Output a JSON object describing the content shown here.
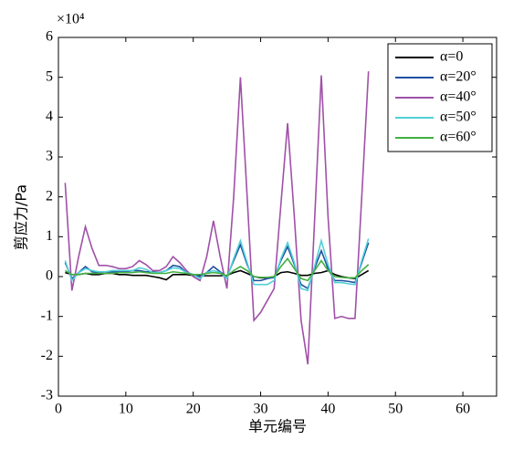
{
  "chart_data": {
    "type": "line",
    "xlabel": "单元编号",
    "ylabel": "剪应力/Pa",
    "y_multiplier": "×10⁴",
    "xlim": [
      0,
      65
    ],
    "xticks": [
      0,
      10,
      20,
      30,
      40,
      50,
      60
    ],
    "ylim": [
      -3,
      6
    ],
    "yticks": [
      -3,
      -2,
      -1,
      0,
      1,
      2,
      3,
      4,
      5,
      6
    ],
    "legend": "upper right",
    "x": [
      1,
      2,
      3,
      4,
      5,
      6,
      7,
      8,
      9,
      10,
      11,
      12,
      13,
      14,
      15,
      16,
      17,
      18,
      19,
      20,
      21,
      22,
      23,
      24,
      25,
      26,
      27,
      28,
      29,
      30,
      31,
      32,
      33,
      34,
      35,
      36,
      37,
      38,
      39,
      40,
      41,
      42,
      43,
      44,
      45,
      46
    ],
    "series": [
      {
        "name": "α=0",
        "color": "#000000",
        "values": [
          0.1,
          0.05,
          0.05,
          0.08,
          0.05,
          0.05,
          0.08,
          0.08,
          0.05,
          0.05,
          0.03,
          0.03,
          0.03,
          0,
          -0.03,
          -0.08,
          0.05,
          0.05,
          0.05,
          0.03,
          0.02,
          0.02,
          0.02,
          0.02,
          0.03,
          0.1,
          0.15,
          0.08,
          0,
          -0.03,
          -0.03,
          0,
          0.1,
          0.12,
          0.08,
          0.03,
          0.03,
          0.08,
          0.1,
          0.15,
          0.05,
          0,
          -0.03,
          -0.05,
          0.05,
          0.15
        ]
      },
      {
        "name": "α=20°",
        "color": "#1f4fa0",
        "values": [
          0.35,
          -0.05,
          0.1,
          0.25,
          0.12,
          0.1,
          0.12,
          0.12,
          0.12,
          0.12,
          0.15,
          0.15,
          0.12,
          0.12,
          0.1,
          0.15,
          0.28,
          0.25,
          0.1,
          0.05,
          0,
          0.1,
          0.25,
          0.12,
          0,
          0.4,
          0.8,
          0.3,
          -0.1,
          -0.1,
          -0.05,
          -0.02,
          0.4,
          0.75,
          0.3,
          -0.2,
          -0.3,
          0.2,
          0.65,
          0.2,
          -0.1,
          -0.1,
          -0.12,
          -0.15,
          0.35,
          0.85
        ]
      },
      {
        "name": "α=40°",
        "color": "#a050a8",
        "values": [
          2.35,
          -0.35,
          0.5,
          1.25,
          0.7,
          0.28,
          0.28,
          0.25,
          0.2,
          0.2,
          0.25,
          0.4,
          0.3,
          0.15,
          0.15,
          0.25,
          0.5,
          0.35,
          0.15,
          0,
          -0.1,
          0.5,
          1.4,
          0.5,
          -0.3,
          2.0,
          5.0,
          2.0,
          -1.1,
          -0.9,
          -0.6,
          -0.3,
          1.8,
          3.85,
          1.5,
          -1.1,
          -2.2,
          1.4,
          5.05,
          1.5,
          -1.05,
          -1.0,
          -1.05,
          -1.05,
          2.0,
          5.15
        ]
      },
      {
        "name": "α=50°",
        "color": "#50d0d8",
        "values": [
          0.4,
          -0.1,
          0.1,
          0.2,
          0.15,
          0.12,
          0.12,
          0.15,
          0.15,
          0.15,
          0.15,
          0.22,
          0.18,
          0.1,
          0.1,
          0.15,
          0.22,
          0.2,
          0.1,
          0.05,
          -0.05,
          0.1,
          0.15,
          0.1,
          -0.05,
          0.45,
          0.9,
          0.35,
          -0.2,
          -0.2,
          -0.2,
          -0.1,
          0.45,
          0.85,
          0.35,
          -0.3,
          -0.35,
          0.25,
          0.9,
          0.3,
          -0.15,
          -0.15,
          -0.18,
          -0.2,
          0.4,
          0.95
        ]
      },
      {
        "name": "α=60°",
        "color": "#40b040",
        "values": [
          0.15,
          0.05,
          0.05,
          0.08,
          0.08,
          0.08,
          0.08,
          0.08,
          0.1,
          0.1,
          0.1,
          0.12,
          0.1,
          0.08,
          0.08,
          0.08,
          0.12,
          0.1,
          0.08,
          0.05,
          0.05,
          0.08,
          0.1,
          0.08,
          0.02,
          0.15,
          0.25,
          0.15,
          0,
          -0.02,
          -0.02,
          0,
          0.25,
          0.45,
          0.2,
          -0.05,
          -0.1,
          0.15,
          0.4,
          0.15,
          0,
          -0.02,
          -0.03,
          -0.03,
          0.15,
          0.3
        ]
      }
    ]
  }
}
